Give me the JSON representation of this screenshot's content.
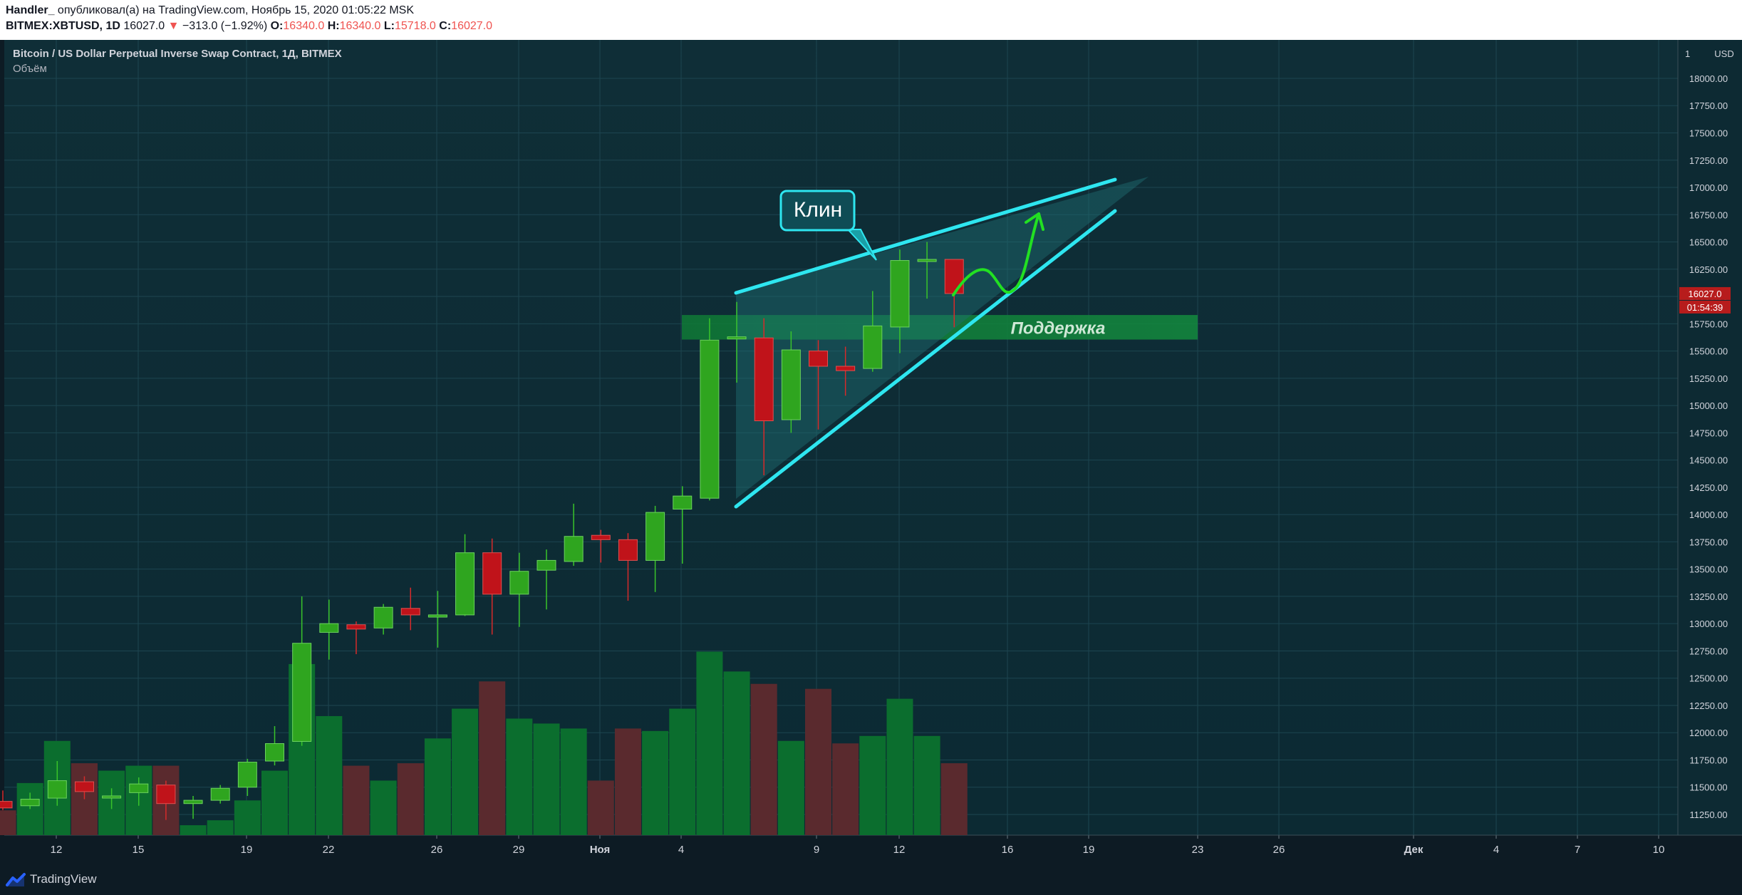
{
  "header": {
    "author": "Handler_",
    "published_text": "опубликовал(а) на TradingView.com, Ноябрь 15, 2020 01:05:22 MSK",
    "symbol": "BITMEX:XBTUSD, 1D",
    "last": "16027.0",
    "change": "−313.0 (−1.92%)",
    "o_label": "O:",
    "o_value": "16340.0",
    "h_label": "H:",
    "h_value": "16340.0",
    "l_label": "L:",
    "l_value": "15718.0",
    "c_label": "C:",
    "c_value": "16027.0"
  },
  "legend": {
    "title": "Bitcoin / US Dollar Perpetual Inverse Swap Contract, 1Д, BITMEX",
    "volume_label": "Объём"
  },
  "price_axis": {
    "currency": "USD",
    "last_price_label": "16027.0",
    "countdown_label": "01:54:39"
  },
  "annotations": {
    "wedge_label": "Клин",
    "support_label": "Поддержка"
  },
  "footer": {
    "brand": "TradingView"
  },
  "colors": {
    "background": "#0d2a33",
    "up": "#2fa51f",
    "down": "#c0131a",
    "volume_up": "#0b6e2e",
    "volume_down": "#5a2a2e",
    "wedge_line": "#2ee6f0",
    "support_zone": "#10803a",
    "arrow": "#22e022"
  },
  "chart_data": {
    "type": "candlestick",
    "y_ticks": [
      11250,
      11500,
      11750,
      12000,
      12250,
      12500,
      12750,
      13000,
      13250,
      13500,
      13750,
      14000,
      14250,
      14500,
      14750,
      15000,
      15250,
      15500,
      15750,
      16000,
      16250,
      16500,
      16750,
      17000,
      17250,
      17500,
      17750,
      18000
    ],
    "x_tick_labels": [
      "12",
      "15",
      "19",
      "22",
      "26",
      "29",
      "Ноя",
      "4",
      "9",
      "12",
      "16",
      "19",
      "23",
      "26",
      "Дек",
      "4",
      "7",
      "10"
    ],
    "candles": [
      {
        "o": 11370,
        "h": 11470,
        "l": 11290,
        "c": 11310,
        "v": 1.0
      },
      {
        "o": 11330,
        "h": 11450,
        "l": 11300,
        "c": 11390,
        "v": 2.1
      },
      {
        "o": 11400,
        "h": 11740,
        "l": 11330,
        "c": 11560,
        "v": 3.8
      },
      {
        "o": 11550,
        "h": 11600,
        "l": 11390,
        "c": 11460,
        "v": 2.9
      },
      {
        "o": 11420,
        "h": 11490,
        "l": 11300,
        "c": 11420,
        "v": 2.6
      },
      {
        "o": 11450,
        "h": 11590,
        "l": 11330,
        "c": 11530,
        "v": 2.8
      },
      {
        "o": 11520,
        "h": 11560,
        "l": 11200,
        "c": 11350,
        "v": 2.8
      },
      {
        "o": 11350,
        "h": 11420,
        "l": 11210,
        "c": 11380,
        "v": 0.4
      },
      {
        "o": 11380,
        "h": 11520,
        "l": 11350,
        "c": 11490,
        "v": 0.6
      },
      {
        "o": 11500,
        "h": 11760,
        "l": 11420,
        "c": 11730,
        "v": 1.4
      },
      {
        "o": 11740,
        "h": 12060,
        "l": 11700,
        "c": 11900,
        "v": 2.6
      },
      {
        "o": 11920,
        "h": 13250,
        "l": 11880,
        "c": 12820,
        "v": 6.9
      },
      {
        "o": 12920,
        "h": 13220,
        "l": 12670,
        "c": 13000,
        "v": 4.8
      },
      {
        "o": 12990,
        "h": 13020,
        "l": 12720,
        "c": 12950,
        "v": 2.8
      },
      {
        "o": 12960,
        "h": 13180,
        "l": 12900,
        "c": 13150,
        "v": 2.2
      },
      {
        "o": 13140,
        "h": 13330,
        "l": 12940,
        "c": 13080,
        "v": 2.9
      },
      {
        "o": 13060,
        "h": 13300,
        "l": 12780,
        "c": 13080,
        "v": 3.9
      },
      {
        "o": 13080,
        "h": 13820,
        "l": 13070,
        "c": 13650,
        "v": 5.1
      },
      {
        "o": 13650,
        "h": 13780,
        "l": 12900,
        "c": 13270,
        "v": 6.2
      },
      {
        "o": 13270,
        "h": 13650,
        "l": 12970,
        "c": 13480,
        "v": 4.7
      },
      {
        "o": 13490,
        "h": 13680,
        "l": 13130,
        "c": 13580,
        "v": 4.5
      },
      {
        "o": 13570,
        "h": 14100,
        "l": 13530,
        "c": 13800,
        "v": 4.3
      },
      {
        "o": 13810,
        "h": 13860,
        "l": 13560,
        "c": 13770,
        "v": 2.2
      },
      {
        "o": 13770,
        "h": 13830,
        "l": 13210,
        "c": 13580,
        "v": 4.3
      },
      {
        "o": 13580,
        "h": 14080,
        "l": 13290,
        "c": 14020,
        "v": 4.2
      },
      {
        "o": 14050,
        "h": 14260,
        "l": 13550,
        "c": 14170,
        "v": 5.1
      },
      {
        "o": 14150,
        "h": 15800,
        "l": 14130,
        "c": 15600,
        "v": 7.4
      },
      {
        "o": 15630,
        "h": 15950,
        "l": 15210,
        "c": 15630,
        "v": 6.6
      },
      {
        "o": 15620,
        "h": 15800,
        "l": 14360,
        "c": 14860,
        "v": 6.1
      },
      {
        "o": 14870,
        "h": 15680,
        "l": 14750,
        "c": 15510,
        "v": 3.8
      },
      {
        "o": 15500,
        "h": 15600,
        "l": 14780,
        "c": 15360,
        "v": 5.9
      },
      {
        "o": 15360,
        "h": 15540,
        "l": 15090,
        "c": 15320,
        "v": 3.7
      },
      {
        "o": 15340,
        "h": 16050,
        "l": 15310,
        "c": 15730,
        "v": 4.0
      },
      {
        "o": 15720,
        "h": 16430,
        "l": 15480,
        "c": 16330,
        "v": 5.5
      },
      {
        "o": 16330,
        "h": 16500,
        "l": 15980,
        "c": 16340,
        "v": 4.0
      },
      {
        "o": 16340,
        "h": 16340,
        "l": 15718,
        "c": 16027,
        "v": 2.9
      }
    ]
  }
}
